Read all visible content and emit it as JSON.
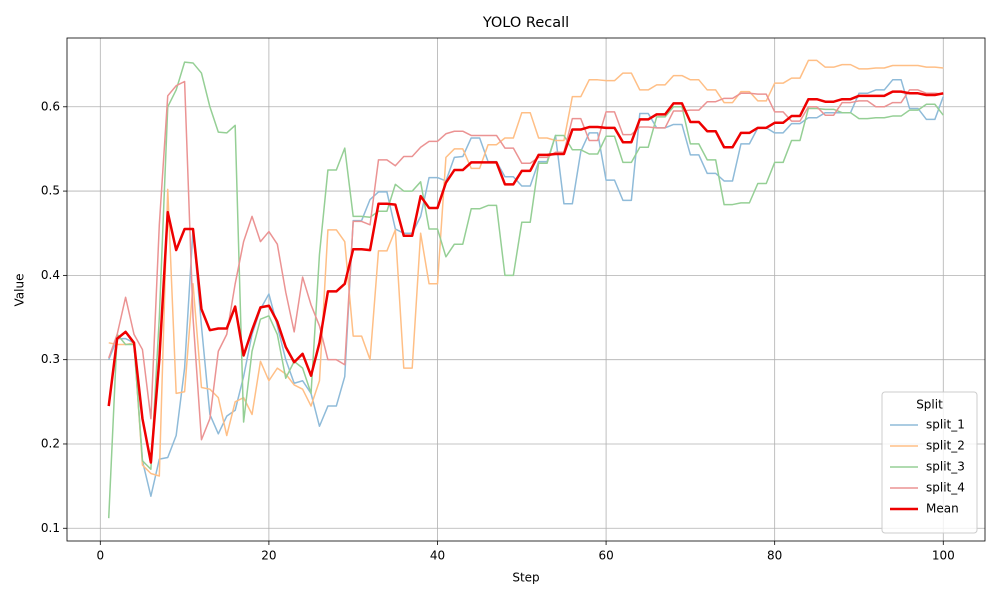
{
  "chart_data": {
    "type": "line",
    "title": "YOLO Recall",
    "x_label": "Step",
    "y_label": "Value",
    "x": [
      1,
      2,
      3,
      4,
      5,
      6,
      7,
      8,
      9,
      10,
      11,
      12,
      13,
      14,
      15,
      16,
      17,
      18,
      19,
      20,
      21,
      22,
      23,
      24,
      25,
      26,
      27,
      28,
      29,
      30,
      31,
      32,
      33,
      34,
      35,
      36,
      37,
      38,
      39,
      40,
      41,
      42,
      43,
      44,
      45,
      46,
      47,
      48,
      49,
      50,
      51,
      52,
      53,
      54,
      55,
      56,
      57,
      58,
      59,
      60,
      61,
      62,
      63,
      64,
      65,
      66,
      67,
      68,
      69,
      70,
      71,
      72,
      73,
      74,
      75,
      76,
      77,
      78,
      79,
      80,
      81,
      82,
      83,
      84,
      85,
      86,
      87,
      88,
      89,
      90,
      91,
      92,
      93,
      94,
      95,
      96,
      97,
      98,
      99,
      100
    ],
    "series": [
      {
        "name": "split_1",
        "color": "#8fbbd9",
        "width": 1.5,
        "values": [
          0.3,
          0.325,
          0.325,
          0.32,
          0.18,
          0.138,
          0.182,
          0.184,
          0.21,
          0.29,
          0.455,
          0.34,
          0.235,
          0.212,
          0.233,
          0.24,
          0.28,
          0.33,
          0.36,
          0.378,
          0.34,
          0.3,
          0.272,
          0.275,
          0.26,
          0.221,
          0.245,
          0.245,
          0.28,
          0.465,
          0.465,
          0.49,
          0.499,
          0.499,
          0.455,
          0.45,
          0.45,
          0.47,
          0.516,
          0.516,
          0.512,
          0.54,
          0.541,
          0.563,
          0.563,
          0.535,
          0.535,
          0.517,
          0.517,
          0.506,
          0.506,
          0.535,
          0.535,
          0.566,
          0.485,
          0.485,
          0.547,
          0.569,
          0.569,
          0.513,
          0.513,
          0.489,
          0.489,
          0.592,
          0.592,
          0.575,
          0.575,
          0.579,
          0.579,
          0.543,
          0.543,
          0.521,
          0.521,
          0.512,
          0.512,
          0.556,
          0.556,
          0.575,
          0.575,
          0.569,
          0.569,
          0.58,
          0.58,
          0.587,
          0.587,
          0.593,
          0.593,
          0.593,
          0.593,
          0.616,
          0.616,
          0.62,
          0.62,
          0.632,
          0.632,
          0.598,
          0.598,
          0.585,
          0.585,
          0.612
        ]
      },
      {
        "name": "split_2",
        "color": "#ffbf86",
        "width": 1.5,
        "values": [
          0.32,
          0.318,
          0.318,
          0.32,
          0.175,
          0.165,
          0.162,
          0.502,
          0.26,
          0.262,
          0.39,
          0.267,
          0.265,
          0.255,
          0.21,
          0.25,
          0.255,
          0.235,
          0.298,
          0.275,
          0.29,
          0.283,
          0.27,
          0.265,
          0.245,
          0.275,
          0.454,
          0.454,
          0.44,
          0.328,
          0.328,
          0.3,
          0.429,
          0.429,
          0.454,
          0.29,
          0.29,
          0.45,
          0.39,
          0.39,
          0.54,
          0.55,
          0.55,
          0.527,
          0.527,
          0.555,
          0.555,
          0.563,
          0.563,
          0.593,
          0.593,
          0.563,
          0.563,
          0.56,
          0.56,
          0.612,
          0.612,
          0.632,
          0.632,
          0.631,
          0.631,
          0.64,
          0.64,
          0.62,
          0.62,
          0.626,
          0.626,
          0.637,
          0.637,
          0.632,
          0.632,
          0.62,
          0.62,
          0.605,
          0.605,
          0.618,
          0.618,
          0.607,
          0.607,
          0.628,
          0.628,
          0.634,
          0.634,
          0.655,
          0.655,
          0.647,
          0.647,
          0.65,
          0.65,
          0.645,
          0.645,
          0.646,
          0.646,
          0.649,
          0.649,
          0.649,
          0.649,
          0.647,
          0.647,
          0.646
        ]
      },
      {
        "name": "split_3",
        "color": "#95cf95",
        "width": 1.5,
        "values": [
          0.112,
          0.33,
          0.318,
          0.318,
          0.18,
          0.17,
          0.35,
          0.6,
          0.62,
          0.653,
          0.652,
          0.64,
          0.6,
          0.57,
          0.569,
          0.578,
          0.226,
          0.31,
          0.348,
          0.352,
          0.33,
          0.278,
          0.298,
          0.29,
          0.26,
          0.425,
          0.525,
          0.525,
          0.551,
          0.47,
          0.47,
          0.469,
          0.476,
          0.476,
          0.508,
          0.5,
          0.5,
          0.511,
          0.455,
          0.455,
          0.422,
          0.437,
          0.437,
          0.479,
          0.479,
          0.483,
          0.483,
          0.4,
          0.4,
          0.463,
          0.463,
          0.533,
          0.533,
          0.566,
          0.566,
          0.549,
          0.549,
          0.544,
          0.544,
          0.565,
          0.565,
          0.534,
          0.534,
          0.552,
          0.552,
          0.588,
          0.588,
          0.6,
          0.6,
          0.556,
          0.556,
          0.537,
          0.537,
          0.484,
          0.484,
          0.486,
          0.486,
          0.509,
          0.509,
          0.534,
          0.534,
          0.56,
          0.56,
          0.598,
          0.598,
          0.597,
          0.597,
          0.593,
          0.593,
          0.586,
          0.586,
          0.587,
          0.587,
          0.589,
          0.589,
          0.596,
          0.596,
          0.603,
          0.603,
          0.59
        ]
      },
      {
        "name": "split_4",
        "color": "#eb9393",
        "width": 1.5,
        "values": [
          0.302,
          0.33,
          0.374,
          0.33,
          0.312,
          0.23,
          0.46,
          0.613,
          0.625,
          0.63,
          0.35,
          0.205,
          0.23,
          0.31,
          0.33,
          0.39,
          0.44,
          0.47,
          0.44,
          0.452,
          0.437,
          0.38,
          0.333,
          0.398,
          0.365,
          0.34,
          0.3,
          0.3,
          0.294,
          0.464,
          0.464,
          0.46,
          0.537,
          0.537,
          0.53,
          0.541,
          0.541,
          0.552,
          0.559,
          0.559,
          0.568,
          0.571,
          0.571,
          0.566,
          0.566,
          0.566,
          0.566,
          0.551,
          0.551,
          0.533,
          0.533,
          0.54,
          0.54,
          0.546,
          0.546,
          0.586,
          0.586,
          0.56,
          0.56,
          0.594,
          0.594,
          0.567,
          0.567,
          0.576,
          0.576,
          0.575,
          0.575,
          0.595,
          0.595,
          0.596,
          0.596,
          0.606,
          0.606,
          0.61,
          0.61,
          0.616,
          0.616,
          0.615,
          0.615,
          0.594,
          0.594,
          0.583,
          0.583,
          0.6,
          0.6,
          0.59,
          0.59,
          0.605,
          0.605,
          0.607,
          0.607,
          0.6,
          0.6,
          0.605,
          0.605,
          0.62,
          0.62,
          0.616,
          0.616,
          0.615
        ]
      },
      {
        "name": "Mean",
        "color": "#ee0000",
        "width": 2.5,
        "values": [
          0.245,
          0.325,
          0.333,
          0.32,
          0.23,
          0.178,
          0.3,
          0.475,
          0.43,
          0.455,
          0.455,
          0.36,
          0.335,
          0.337,
          0.337,
          0.363,
          0.305,
          0.335,
          0.362,
          0.364,
          0.345,
          0.315,
          0.297,
          0.307,
          0.281,
          0.32,
          0.381,
          0.381,
          0.39,
          0.431,
          0.431,
          0.43,
          0.485,
          0.485,
          0.484,
          0.447,
          0.447,
          0.494,
          0.48,
          0.48,
          0.51,
          0.525,
          0.525,
          0.534,
          0.534,
          0.534,
          0.534,
          0.508,
          0.508,
          0.524,
          0.524,
          0.543,
          0.543,
          0.544,
          0.544,
          0.573,
          0.573,
          0.576,
          0.576,
          0.575,
          0.575,
          0.558,
          0.558,
          0.585,
          0.585,
          0.591,
          0.591,
          0.604,
          0.604,
          0.582,
          0.582,
          0.571,
          0.571,
          0.552,
          0.552,
          0.569,
          0.569,
          0.575,
          0.575,
          0.581,
          0.581,
          0.589,
          0.589,
          0.609,
          0.609,
          0.606,
          0.606,
          0.609,
          0.609,
          0.613,
          0.613,
          0.613,
          0.613,
          0.618,
          0.618,
          0.616,
          0.616,
          0.614,
          0.614,
          0.616
        ]
      }
    ],
    "xlim": [
      -3.95,
      104.95
    ],
    "ylim": [
      0.0849,
      0.6816
    ],
    "xticks": [
      0,
      20,
      40,
      60,
      80,
      100
    ],
    "yticks": [
      0.1,
      0.2,
      0.3,
      0.4,
      0.5,
      0.6
    ],
    "grid": true,
    "legend_title": "Split",
    "legend_position": "lower right"
  }
}
